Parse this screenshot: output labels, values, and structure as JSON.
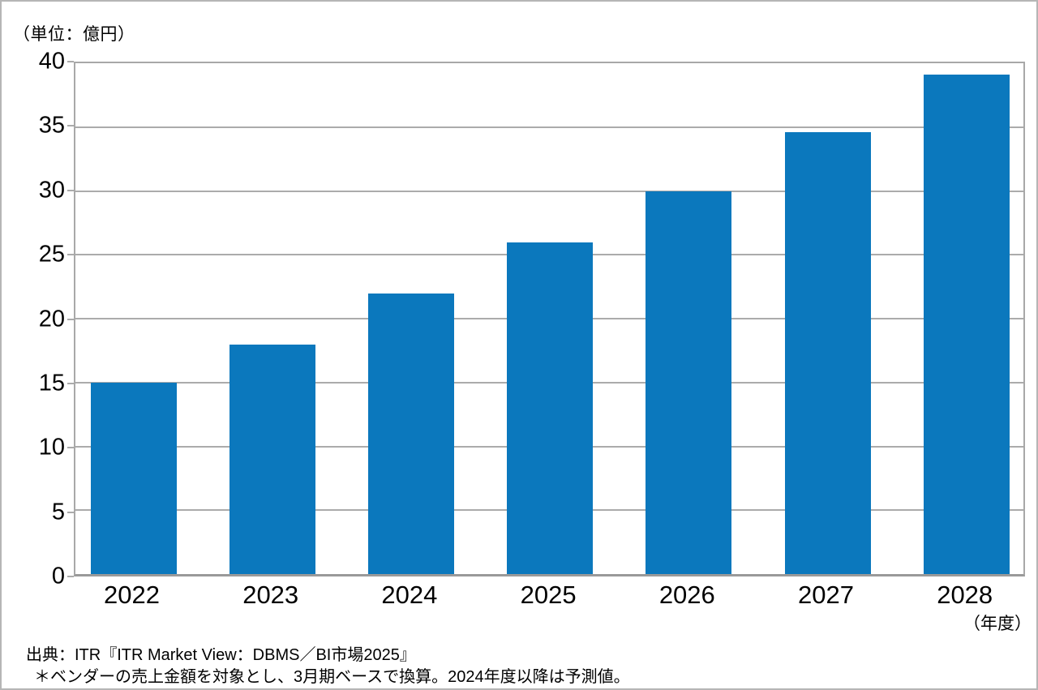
{
  "unit_label": "（単位：億円）",
  "x_axis_suffix": "（年度）",
  "source_line": "出典：ITR『ITR Market View：DBMS／BI市場2025』",
  "note_line": "＊ベンダーの売上金額を対象とし、3月期ベースで換算。2024年度以降は予測値。",
  "colors": {
    "bar": "#0b78bd",
    "gridline": "#ababab",
    "axis": "#9a9a9a",
    "text": "#000000",
    "background": "#ffffff"
  },
  "chart_data": {
    "type": "bar",
    "categories": [
      "2022",
      "2023",
      "2024",
      "2025",
      "2026",
      "2027",
      "2028"
    ],
    "values": [
      15,
      18,
      22,
      26,
      30,
      34.6,
      39.1
    ],
    "title": "",
    "xlabel": "（年度）",
    "ylabel": "（単位：億円）",
    "ylim": [
      0,
      40
    ],
    "ytick_step": 5,
    "yticks": [
      0,
      5,
      10,
      15,
      20,
      25,
      30,
      35,
      40
    ],
    "grid": true,
    "legend": false,
    "bar_color": "#0b78bd"
  }
}
